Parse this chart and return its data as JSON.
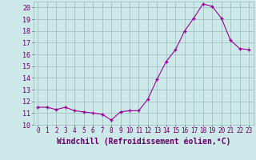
{
  "x": [
    0,
    1,
    2,
    3,
    4,
    5,
    6,
    7,
    8,
    9,
    10,
    11,
    12,
    13,
    14,
    15,
    16,
    17,
    18,
    19,
    20,
    21,
    22,
    23
  ],
  "y": [
    11.5,
    11.5,
    11.3,
    11.5,
    11.2,
    11.1,
    11.0,
    10.9,
    10.4,
    11.1,
    11.2,
    11.2,
    12.2,
    13.9,
    15.4,
    16.4,
    18.0,
    19.1,
    20.3,
    20.1,
    19.1,
    17.2,
    16.5,
    16.4
  ],
  "line_color": "#990099",
  "marker": "+",
  "marker_size": 3,
  "marker_linewidth": 1.0,
  "line_width": 0.8,
  "bg_color": "#cce8e8",
  "grid_color": "#99bbbb",
  "xlabel": "Windchill (Refroidissement éolien,°C)",
  "xlabel_fontsize": 7,
  "xtick_fontsize": 5.5,
  "ytick_fontsize": 6,
  "ylim": [
    10,
    20.5
  ],
  "xlim": [
    -0.5,
    23.5
  ],
  "yticks": [
    10,
    11,
    12,
    13,
    14,
    15,
    16,
    17,
    18,
    19,
    20
  ],
  "tick_color": "#660066",
  "label_color": "#660066"
}
